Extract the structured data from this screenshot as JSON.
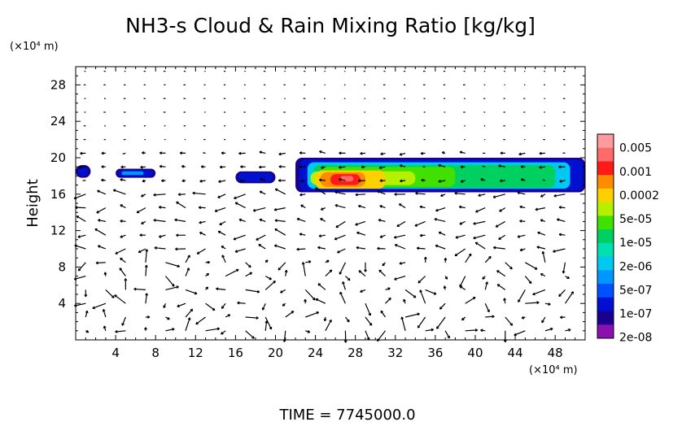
{
  "chart_data": {
    "type": "heatmap",
    "title": "NH3-s Cloud & Rain Mixing Ratio [kg/kg]",
    "ylabel": "Height",
    "y_unit_label": "(×10⁴ m)",
    "x_unit_label": "(×10⁴ m)",
    "footer": "TIME  =  7745000.0",
    "xlim": [
      0,
      51
    ],
    "ylim": [
      0,
      30
    ],
    "x_ticks": [
      "4",
      "8",
      "12",
      "16",
      "20",
      "24",
      "28",
      "32",
      "36",
      "40",
      "44",
      "48"
    ],
    "y_ticks": [
      "4",
      "8",
      "12",
      "16",
      "20",
      "24",
      "28"
    ],
    "colorbar": {
      "labels": [
        "0.005",
        "0.001",
        "0.0002",
        "5e-05",
        "1e-05",
        "2e-06",
        "5e-07",
        "1e-07",
        "2e-08"
      ],
      "colors": [
        "#ff9aa0",
        "#ff6a6a",
        "#ff1a1a",
        "#ff8c00",
        "#ffd000",
        "#b4f000",
        "#40e000",
        "#00d060",
        "#00e0b0",
        "#00c8f0",
        "#0096ff",
        "#0050ff",
        "#0010d0",
        "#1a0090",
        "#8a10b0"
      ]
    },
    "cloud_regions": [
      {
        "x_range": [
          0,
          1.5
        ],
        "y_range": [
          17.8,
          19.2
        ],
        "max_level": "1e-07"
      },
      {
        "x_range": [
          4,
          8
        ],
        "y_range": [
          17.8,
          18.8
        ],
        "max_level": "5e-07"
      },
      {
        "x_range": [
          16,
          20
        ],
        "y_range": [
          17.2,
          18.5
        ],
        "max_level": "1e-07"
      },
      {
        "x_range": [
          22,
          51
        ],
        "y_range": [
          16.2,
          20.0
        ],
        "max_level": "0.001"
      }
    ]
  }
}
